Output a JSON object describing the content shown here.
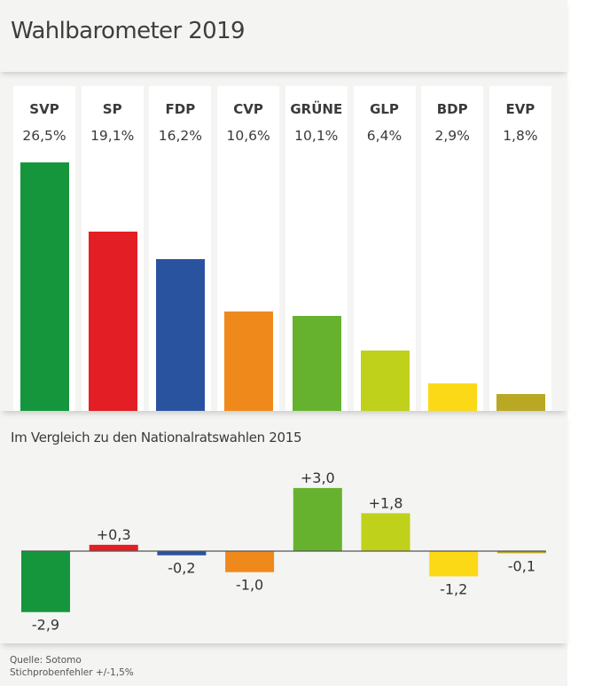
{
  "title": "Wahlbarometer 2019",
  "subtitle": "Im Vergleich zu den Nationalratswahlen 2015",
  "footer": {
    "source": "Quelle: Sotomo",
    "error_margin": "Stichprobenfehler +/-1,5%"
  },
  "chart_data": [
    {
      "type": "bar",
      "title": "Wahlbarometer 2019",
      "xlabel": "",
      "ylabel": "",
      "unit": "%",
      "categories": [
        "SVP",
        "SP",
        "FDP",
        "CVP",
        "GRÜNE",
        "GLP",
        "BDP",
        "EVP"
      ],
      "values": [
        26.5,
        19.1,
        16.2,
        10.6,
        10.1,
        6.4,
        2.9,
        1.8
      ],
      "labels": [
        "26,5%",
        "19,1%",
        "16,2%",
        "10,6%",
        "10,1%",
        "6,4%",
        "2,9%",
        "1,8%"
      ],
      "colors": [
        "#16963c",
        "#e31e24",
        "#2a539f",
        "#f0891c",
        "#66b22f",
        "#bfd11b",
        "#fbd916",
        "#b9a823"
      ],
      "ylim": [
        0,
        26.5
      ],
      "grid": false,
      "legend": "none"
    },
    {
      "type": "bar",
      "title": "Im Vergleich zu den Nationalratswahlen 2015",
      "xlabel": "",
      "ylabel": "",
      "categories": [
        "SVP",
        "SP",
        "FDP",
        "CVP",
        "GRÜNE",
        "GLP",
        "BDP",
        "EVP"
      ],
      "values": [
        -2.9,
        0.3,
        -0.2,
        -1.0,
        3.0,
        1.8,
        -1.2,
        -0.1
      ],
      "labels": [
        "-2,9",
        "+0,3",
        "-0,2",
        "-1,0",
        "+3,0",
        "+1,8",
        "-1,2",
        "-0,1"
      ],
      "colors": [
        "#16963c",
        "#e31e24",
        "#2a539f",
        "#f0891c",
        "#66b22f",
        "#bfd11b",
        "#fbd916",
        "#b9a823"
      ],
      "ylim": [
        -3.0,
        3.0
      ],
      "baseline": 0,
      "grid": false,
      "legend": "none"
    }
  ]
}
